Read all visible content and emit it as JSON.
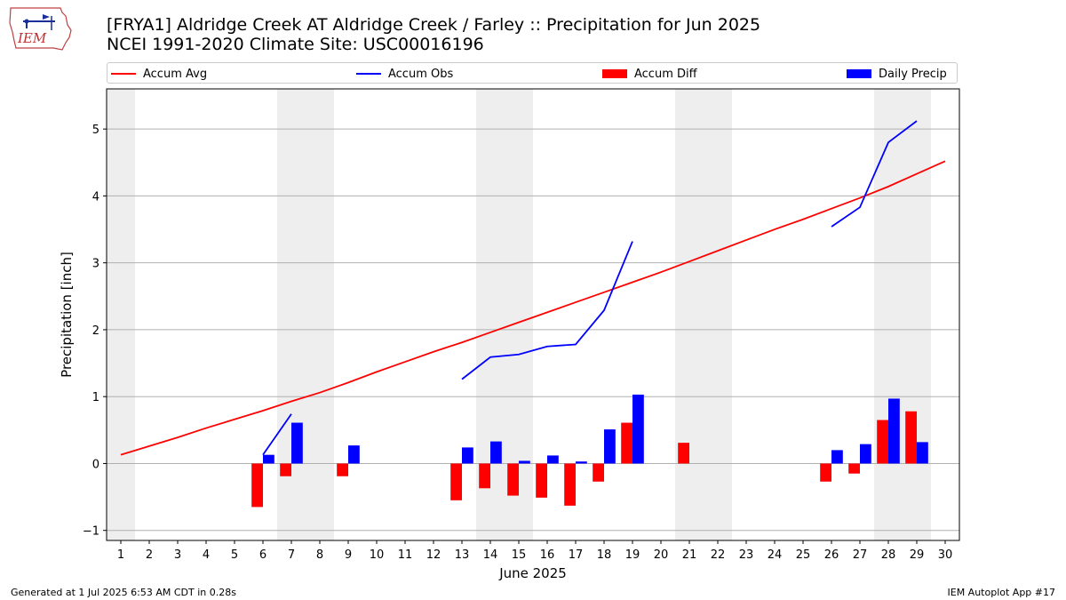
{
  "header": {
    "logo_text": "IEM",
    "title_line1": "[FRYA1] Aldridge Creek  AT Aldridge Creek / Farley :: Precipitation for Jun 2025",
    "title_line2": "NCEI 1991-2020 Climate Site: USC00016196"
  },
  "footer": {
    "generated": "Generated at 1 Jul 2025 6:53 AM CDT in 0.28s",
    "app": "IEM Autoplot App #17"
  },
  "chart_data": {
    "type": "bar",
    "xlabel": "June 2025",
    "ylabel": "Precipitation [inch]",
    "xlim": [
      0.5,
      30.5
    ],
    "ylim": [
      -1.15,
      5.6
    ],
    "yticks": [
      -1,
      0,
      1,
      2,
      3,
      4,
      5
    ],
    "xticks": [
      1,
      2,
      3,
      4,
      5,
      6,
      7,
      8,
      9,
      10,
      11,
      12,
      13,
      14,
      15,
      16,
      17,
      18,
      19,
      20,
      21,
      22,
      23,
      24,
      25,
      26,
      27,
      28,
      29,
      30
    ],
    "grid": "horizontal",
    "legend_position": "top",
    "weekend_shading": [
      [
        0.5,
        1.5
      ],
      [
        6.5,
        8.5
      ],
      [
        13.5,
        15.5
      ],
      [
        20.5,
        22.5
      ],
      [
        27.5,
        29.5
      ]
    ],
    "colors": {
      "accum_avg": "#ff0000",
      "accum_obs": "#0000ff",
      "accum_diff": "#ff0000",
      "daily_precip": "#0000ff",
      "shade": "#eeeeee",
      "grid": "#b0b0b0"
    },
    "series": [
      {
        "name": "Accum Avg",
        "type": "line",
        "x": [
          1,
          2,
          3,
          4,
          5,
          6,
          7,
          8,
          9,
          10,
          11,
          12,
          13,
          14,
          15,
          16,
          17,
          18,
          19,
          20,
          21,
          22,
          23,
          24,
          25,
          26,
          27,
          28,
          29,
          30
        ],
        "values": [
          0.13,
          0.26,
          0.39,
          0.53,
          0.66,
          0.79,
          0.93,
          1.06,
          1.21,
          1.37,
          1.52,
          1.67,
          1.81,
          1.96,
          2.11,
          2.26,
          2.41,
          2.56,
          2.71,
          2.86,
          3.02,
          3.18,
          3.34,
          3.5,
          3.65,
          3.81,
          3.97,
          4.14,
          4.33,
          4.52
        ]
      },
      {
        "name": "Accum Obs",
        "type": "line",
        "segments": [
          {
            "x": [
              6,
              7
            ],
            "values": [
              0.13,
              0.74
            ]
          },
          {
            "x": [
              13,
              14,
              15,
              16,
              17,
              18,
              19
            ],
            "values": [
              1.26,
              1.59,
              1.63,
              1.75,
              1.78,
              2.29,
              3.32
            ]
          },
          {
            "x": [
              26,
              27,
              28,
              29
            ],
            "values": [
              3.54,
              3.83,
              4.8,
              5.12
            ]
          }
        ]
      },
      {
        "name": "Accum Diff",
        "type": "bar",
        "x": [
          6,
          7,
          9,
          13,
          14,
          15,
          16,
          17,
          18,
          19,
          21,
          26,
          27,
          28,
          29
        ],
        "values": [
          -0.65,
          -0.19,
          -0.19,
          -0.55,
          -0.37,
          -0.48,
          -0.51,
          -0.63,
          -0.27,
          0.61,
          0.31,
          -0.27,
          -0.15,
          0.65,
          0.78
        ]
      },
      {
        "name": "Daily Precip",
        "type": "bar",
        "x": [
          6,
          7,
          9,
          13,
          14,
          15,
          16,
          17,
          18,
          19,
          26,
          27,
          28,
          29
        ],
        "values": [
          0.13,
          0.61,
          0.27,
          0.24,
          0.33,
          0.04,
          0.12,
          0.03,
          0.51,
          1.03,
          0.2,
          0.29,
          0.97,
          0.32
        ]
      }
    ]
  }
}
